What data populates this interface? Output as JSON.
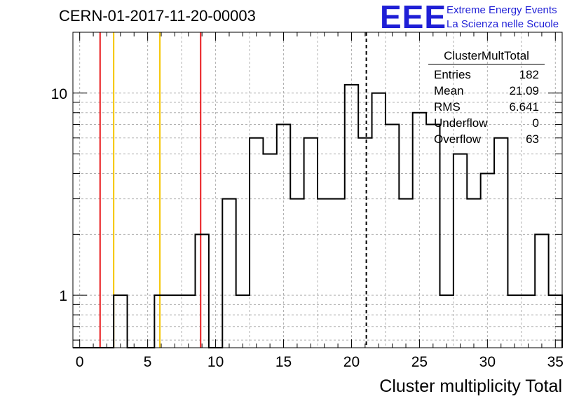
{
  "header": {
    "run_id": "CERN-01-2017-11-20-00003",
    "logo_mark": "EEE",
    "logo_line1": "Extreme Energy Events",
    "logo_line2": "La Scienza nelle Scuole"
  },
  "stats": {
    "title": "ClusterMultTotal",
    "rows": [
      {
        "label": "Entries",
        "value": "182"
      },
      {
        "label": "Mean",
        "value": "21.09"
      },
      {
        "label": "RMS",
        "value": "6.641"
      },
      {
        "label": "Underflow",
        "value": "0"
      },
      {
        "label": "Overflow",
        "value": "63"
      }
    ]
  },
  "chart_data": {
    "type": "histogram",
    "title": "CERN-01-2017-11-20-00003",
    "xlabel": "Cluster multiplicity Total",
    "ylabel": "",
    "x_range": [
      -0.5,
      35.5
    ],
    "y_range": [
      0.55,
      20
    ],
    "y_scale": "log",
    "grid": true,
    "bin_width": 1,
    "bins": [
      {
        "x": 0,
        "count": 0
      },
      {
        "x": 1,
        "count": 0
      },
      {
        "x": 2,
        "count": 0
      },
      {
        "x": 3,
        "count": 1
      },
      {
        "x": 4,
        "count": 0
      },
      {
        "x": 5,
        "count": 0
      },
      {
        "x": 6,
        "count": 1
      },
      {
        "x": 7,
        "count": 1
      },
      {
        "x": 8,
        "count": 1
      },
      {
        "x": 9,
        "count": 2
      },
      {
        "x": 10,
        "count": 0
      },
      {
        "x": 11,
        "count": 3
      },
      {
        "x": 12,
        "count": 1
      },
      {
        "x": 13,
        "count": 6
      },
      {
        "x": 14,
        "count": 5
      },
      {
        "x": 15,
        "count": 7
      },
      {
        "x": 16,
        "count": 3
      },
      {
        "x": 17,
        "count": 6
      },
      {
        "x": 18,
        "count": 3
      },
      {
        "x": 19,
        "count": 3
      },
      {
        "x": 20,
        "count": 11
      },
      {
        "x": 21,
        "count": 6
      },
      {
        "x": 22,
        "count": 10
      },
      {
        "x": 23,
        "count": 7
      },
      {
        "x": 24,
        "count": 3
      },
      {
        "x": 25,
        "count": 8
      },
      {
        "x": 26,
        "count": 7
      },
      {
        "x": 27,
        "count": 1
      },
      {
        "x": 28,
        "count": 5
      },
      {
        "x": 29,
        "count": 3
      },
      {
        "x": 30,
        "count": 4
      },
      {
        "x": 31,
        "count": 6
      },
      {
        "x": 32,
        "count": 1
      },
      {
        "x": 33,
        "count": 1
      },
      {
        "x": 34,
        "count": 2
      },
      {
        "x": 35,
        "count": 1
      }
    ],
    "x_ticks": [
      0,
      5,
      10,
      15,
      20,
      25,
      30,
      35
    ],
    "y_ticks": [
      1,
      10
    ],
    "markers": [
      {
        "x": 1.5,
        "color": "#e8191c",
        "style": "solid"
      },
      {
        "x": 2.5,
        "color": "#f5c400",
        "style": "solid"
      },
      {
        "x": 5.9,
        "color": "#f5c400",
        "style": "solid"
      },
      {
        "x": 8.9,
        "color": "#e8191c",
        "style": "solid"
      },
      {
        "x": 21.09,
        "color": "#000000",
        "style": "dashed"
      }
    ]
  }
}
